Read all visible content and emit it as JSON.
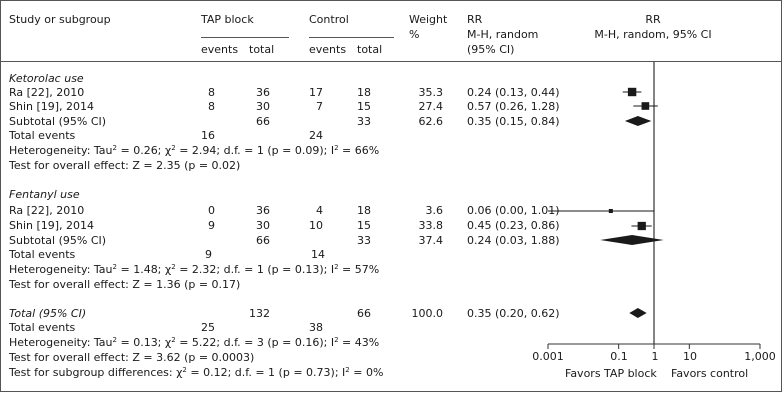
{
  "header": {
    "study": "Study or subgroup",
    "tap": "TAP block",
    "control": "Control",
    "weight1": "Weight",
    "weight2": "%",
    "rr1": "RR",
    "rr2": "M-H, random",
    "rr3": "(95% CI)",
    "rrplot1": "RR",
    "rrplot2": "M-H, random, 95% CI",
    "events": "events",
    "total": "total",
    "events_c": "events",
    "total_c": "total"
  },
  "groups": [
    {
      "name": "Ketorolac use",
      "rows": [
        {
          "study": "Ra [22], 2010",
          "te": "8",
          "tt": "36",
          "ce": "17",
          "ct": "18",
          "w": "35.3",
          "rr": "0.24 (0.13, 0.44)"
        },
        {
          "study": "Shin [19], 2014",
          "te": "8",
          "tt": "30",
          "ce": "7",
          "ct": "15",
          "w": "27.4",
          "rr": "0.57 (0.26, 1.28)"
        }
      ],
      "subtotal": {
        "label": "Subtotal (95% CI)",
        "tt": "66",
        "ct": "33",
        "w": "62.6",
        "rr": "0.35 (0.15, 0.84)"
      },
      "total_events": {
        "label": "Total events",
        "te": "16",
        "ce": "24"
      },
      "heterogeneity": {
        "a": "Heterogeneity: Tau",
        "b": "2",
        "c": " = 0.26; χ",
        "d": "2",
        "e": " = 2.94; d.f. = 1 (p = 0.09); I",
        "f": "2",
        "g": " = 66%"
      },
      "overall": "Test for overall effect: Z = 2.35 (p = 0.02)"
    },
    {
      "name": "Fentanyl use",
      "rows": [
        {
          "study": "Ra [22], 2010",
          "te": "0",
          "tt": "36",
          "ce": "4",
          "ct": "18",
          "w": "3.6",
          "rr": "0.06 (0.00, 1.01)"
        },
        {
          "study": "Shin [19], 2014",
          "te": "9",
          "tt": "30",
          "ce": "10",
          "ct": "15",
          "w": "33.8",
          "rr": "0.45 (0.23, 0.86)"
        }
      ],
      "subtotal": {
        "label": "Subtotal (95% CI)",
        "tt": "66",
        "ct": "33",
        "w": "37.4",
        "rr": "0.24 (0.03, 1.88)"
      },
      "total_events": {
        "label": "Total events",
        "te": "9",
        "ce": "14"
      },
      "heterogeneity": {
        "a": "Heterogeneity: Tau",
        "b": "2",
        "c": " = 1.48; χ",
        "d": "2",
        "e": " = 2.32; d.f. = 1 (p = 0.13); I",
        "f": "2",
        "g": " = 57%"
      },
      "overall": "Test for overall effect: Z = 1.36 (p = 0.17)"
    }
  ],
  "total": {
    "label": "Total (95% CI)",
    "tt": "132",
    "ct": "66",
    "w": "100.0",
    "rr": "0.35 (0.20, 0.62)",
    "events_label": "Total events",
    "te": "25",
    "ce": "38",
    "heterogeneity": {
      "a": "Heterogeneity: Tau",
      "b": "2",
      "c": " = 0.13; χ",
      "d": "2",
      "e": " = 5.22; d.f. = 3 (p = 0.16); I",
      "f": "2",
      "g": " = 43%"
    },
    "overall": "Test for overall effect: Z = 3.62 (p = 0.0003)",
    "subgroup": {
      "a": "Test for subgroup differences: χ",
      "b": "2",
      "c": " = 0.12; d.f. = 1 (p = 0.73); I",
      "d": "2",
      "e": " = 0%"
    }
  },
  "axis": {
    "ticks": [
      "0.001",
      "0.1",
      "1",
      "10",
      "1,000"
    ],
    "favors_left": "Favors TAP block",
    "favors_right": "Favors control"
  },
  "chart_data": {
    "type": "forest",
    "x_scale": "log",
    "xlim": [
      0.001,
      1000
    ],
    "x_ticks": [
      0.001,
      0.1,
      1,
      10,
      1000
    ],
    "x_tick_labels": [
      "0.001",
      "0.1",
      "1",
      "10",
      "1,000"
    ],
    "reference_line": 1,
    "studies": [
      {
        "name": "Ra [22], 2010",
        "group": "Ketorolac use",
        "rr": 0.24,
        "lo": 0.13,
        "hi": 0.44,
        "weight": 35.3
      },
      {
        "name": "Shin [19], 2014",
        "group": "Ketorolac use",
        "rr": 0.57,
        "lo": 0.26,
        "hi": 1.28,
        "weight": 27.4
      },
      {
        "name": "Ra [22], 2010",
        "group": "Fentanyl use",
        "rr": 0.06,
        "lo": 0.0,
        "hi": 1.01,
        "weight": 3.6
      },
      {
        "name": "Shin [19], 2014",
        "group": "Fentanyl use",
        "rr": 0.45,
        "lo": 0.23,
        "hi": 0.86,
        "weight": 33.8
      }
    ],
    "subtotals": [
      {
        "group": "Ketorolac use",
        "rr": 0.35,
        "lo": 0.15,
        "hi": 0.84
      },
      {
        "group": "Fentanyl use",
        "rr": 0.24,
        "lo": 0.03,
        "hi": 1.88
      }
    ],
    "overall": {
      "rr": 0.35,
      "lo": 0.2,
      "hi": 0.62
    },
    "colors": {
      "marker": "#1a1a1a",
      "axis": "#333333"
    }
  }
}
